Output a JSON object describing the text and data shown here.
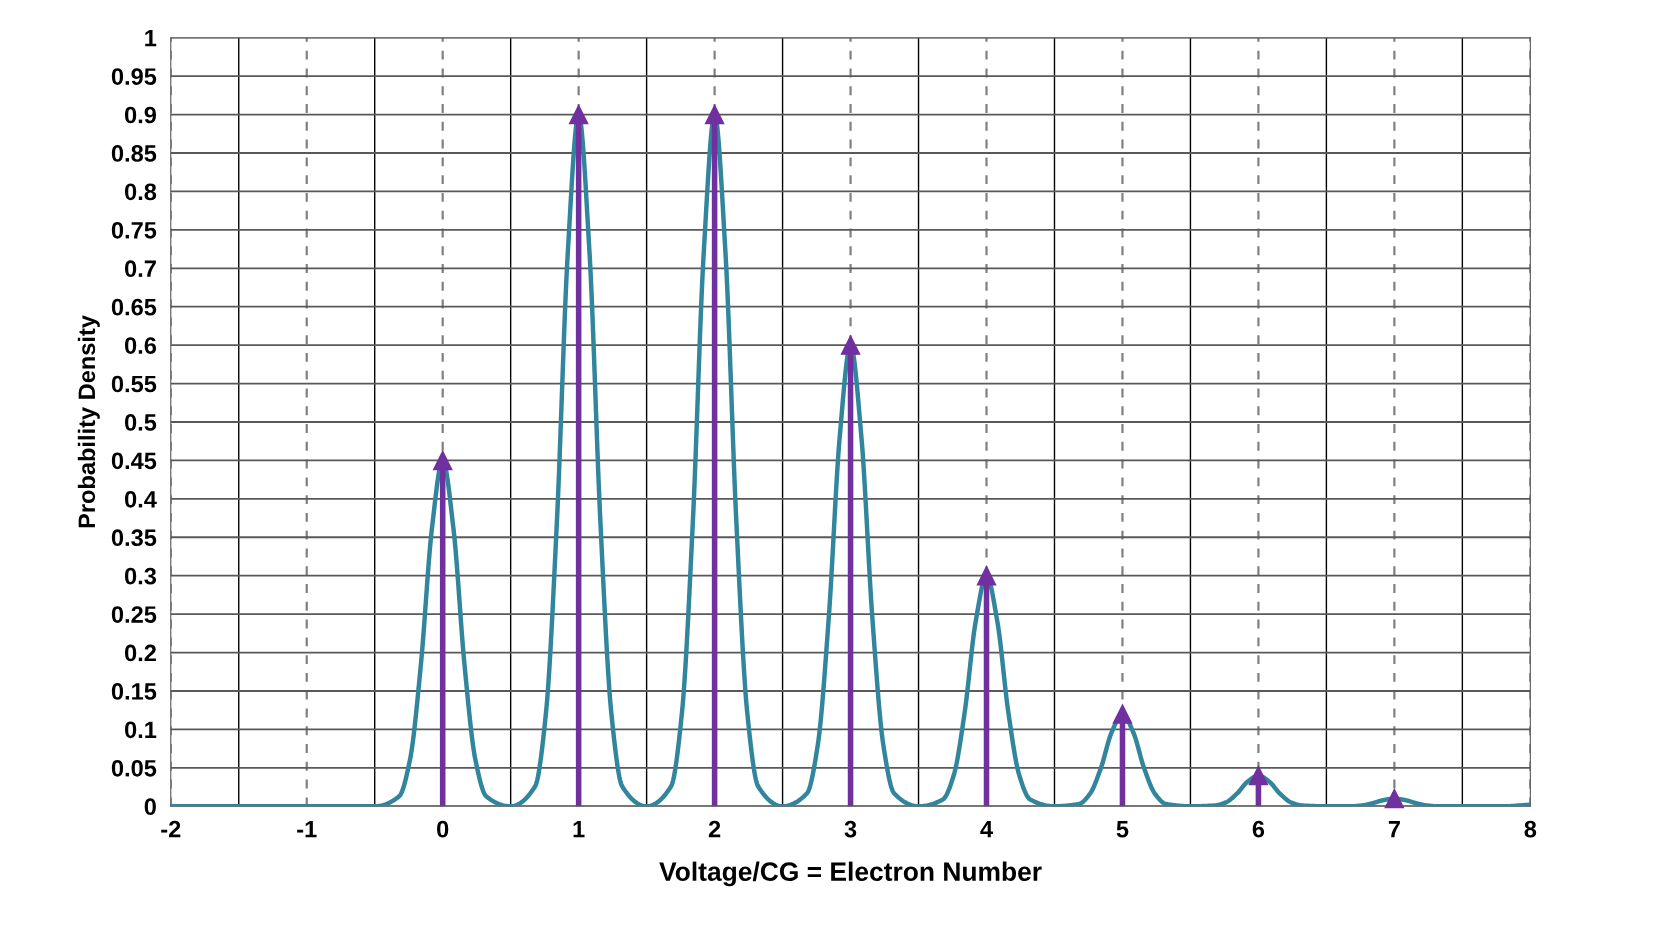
{
  "chart_data": {
    "type": "line",
    "xlabel": "Voltage/CG = Electron Number",
    "ylabel": "Probability Density",
    "xlim": [
      -2,
      8
    ],
    "ylim": [
      0,
      1
    ],
    "xticks": [
      -2,
      {
        "value": -1.5,
        "label": null
      },
      -1,
      {
        "value": -0.5,
        "label": null
      },
      0,
      {
        "value": 0.5,
        "label": null
      },
      1,
      {
        "value": 1.5,
        "label": null
      },
      2,
      {
        "value": 2.5,
        "label": null
      },
      3,
      {
        "value": 3.5,
        "label": null
      },
      4,
      {
        "value": 4.5,
        "label": null
      },
      5,
      {
        "value": 5.5,
        "label": null
      },
      6,
      {
        "value": 6.5,
        "label": null
      },
      7,
      {
        "value": 7.5,
        "label": null
      },
      8
    ],
    "yticks": [
      0,
      0.05,
      0.1,
      0.15,
      0.2,
      0.25,
      0.3,
      0.35,
      0.4,
      0.45,
      0.5,
      0.55,
      0.6,
      0.65,
      0.7,
      0.75,
      0.8,
      0.85,
      0.9,
      0.95,
      1
    ],
    "grid": true,
    "marker": "none",
    "line_style": "solid",
    "series": [
      {
        "color": "#31859c",
        "x": [
          -2,
          -0.5,
          -0.32,
          -0.24,
          -0.16,
          -0.08,
          0,
          0.08,
          0.16,
          0.24,
          0.32,
          0.5,
          0.68,
          0.76,
          0.84,
          0.92,
          1,
          1.08,
          1.16,
          1.24,
          1.32,
          1.5,
          1.68,
          1.76,
          1.84,
          1.92,
          2,
          2.08,
          2.16,
          2.24,
          2.32,
          2.5,
          2.68,
          2.76,
          2.84,
          2.92,
          3,
          3.08,
          3.16,
          3.24,
          3.32,
          3.5,
          3.68,
          3.76,
          3.84,
          3.92,
          4,
          4.08,
          4.16,
          4.24,
          4.32,
          4.5,
          4.68,
          4.76,
          4.84,
          4.92,
          5,
          5.08,
          5.16,
          5.24,
          5.32,
          5.5,
          5.68,
          5.76,
          5.84,
          5.92,
          6,
          6.08,
          6.16,
          6.24,
          6.32,
          6.5,
          6.68,
          6.76,
          6.84,
          6.92,
          7,
          7.08,
          7.16,
          7.24,
          7.32,
          7.5,
          7.8,
          8
        ],
        "values": [
          0,
          0,
          0.013,
          0.061,
          0.185,
          0.36,
          0.45,
          0.36,
          0.185,
          0.061,
          0.013,
          0,
          0.026,
          0.122,
          0.37,
          0.72,
          0.9,
          0.72,
          0.37,
          0.122,
          0.026,
          0,
          0.026,
          0.122,
          0.37,
          0.72,
          0.9,
          0.72,
          0.37,
          0.122,
          0.026,
          0,
          0.017,
          0.081,
          0.246,
          0.48,
          0.6,
          0.48,
          0.246,
          0.081,
          0.017,
          0,
          0.009,
          0.041,
          0.123,
          0.24,
          0.3,
          0.24,
          0.123,
          0.041,
          0.009,
          0,
          0.003,
          0.016,
          0.049,
          0.096,
          0.12,
          0.096,
          0.049,
          0.016,
          0.003,
          0,
          0.001,
          0.005,
          0.016,
          0.032,
          0.04,
          0.032,
          0.016,
          0.005,
          0.001,
          0,
          0,
          0.001,
          0.004,
          0.008,
          0.01,
          0.008,
          0.004,
          0.001,
          0,
          0,
          0,
          0.002
        ]
      },
      {
        "type": "lollipop",
        "color": "#7030a0",
        "marker": "triangle",
        "x": [
          0,
          1,
          2,
          3,
          4,
          5,
          6,
          7
        ],
        "values": [
          0.45,
          0.9,
          0.9,
          0.6,
          0.3,
          0.12,
          0.04,
          0.01
        ]
      }
    ]
  }
}
